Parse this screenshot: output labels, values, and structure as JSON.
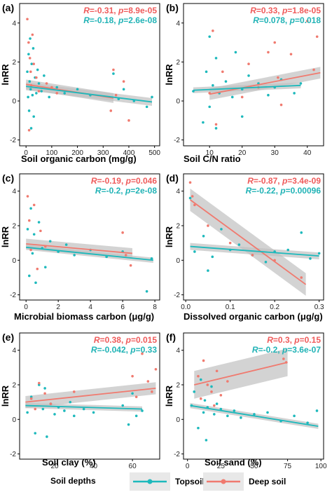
{
  "colors": {
    "topsoil": "#1db9bc",
    "deep_soil": "#f07a6f",
    "band": "#c0c0c0",
    "stat_deep": "#ef5b5b",
    "stat_top": "#21b3b6"
  },
  "legend": {
    "title": "Soil depths",
    "items": [
      "Topsoil",
      "Deep soil"
    ]
  },
  "chart_data": [
    {
      "type": "scatter",
      "panel": "(a)",
      "xlabel": "Soil organic carbon (mg/g)",
      "ylabel": "lnRR",
      "xlim": [
        -25,
        520
      ],
      "ylim": [
        -2.3,
        5.0
      ],
      "xticks": [
        0,
        100,
        200,
        300,
        400,
        500
      ],
      "yticks": [
        -2,
        0,
        2,
        4
      ],
      "stats": [
        {
          "series": "Deep soil",
          "R": "-0.31",
          "p": "8.9e-05"
        },
        {
          "series": "Topsoil",
          "R": "-0.18",
          "p": "2.6e-08"
        }
      ],
      "fits": [
        {
          "series": "Deep soil",
          "x": [
            0,
            340
          ],
          "y": [
            0.85,
            0.15
          ],
          "se": 0.25
        },
        {
          "series": "Topsoil",
          "x": [
            0,
            490
          ],
          "y": [
            0.75,
            -0.05
          ],
          "se": 0.2
        }
      ],
      "series": [
        {
          "name": "Topsoil",
          "x": [
            5,
            8,
            10,
            12,
            14,
            16,
            18,
            20,
            22,
            25,
            28,
            30,
            35,
            40,
            45,
            50,
            60,
            70,
            90,
            120,
            150,
            200,
            250,
            340,
            360,
            380,
            420,
            470,
            490
          ],
          "y": [
            1.5,
            0.2,
            2.4,
            -0.5,
            1.0,
            3.2,
            0.6,
            -1.4,
            1.9,
            0.3,
            2.7,
            -0.8,
            1.2,
            0.4,
            1.6,
            0.9,
            0.5,
            1.3,
            0.2,
            0.7,
            0.4,
            0.6,
            0.3,
            1.4,
            0.1,
            0.6,
            0.0,
            -0.3,
            0.2
          ]
        },
        {
          "name": "Deep soil",
          "x": [
            5,
            10,
            12,
            15,
            18,
            20,
            25,
            30,
            40,
            50,
            80,
            100,
            120,
            330,
            340,
            350,
            380,
            400
          ],
          "y": [
            4.2,
            3.0,
            -1.5,
            2.2,
            1.5,
            0.8,
            3.4,
            1.9,
            1.2,
            0.5,
            0.9,
            0.7,
            0.4,
            -0.5,
            1.6,
            0.3,
            1.0,
            -1.0
          ]
        }
      ]
    },
    {
      "type": "scatter",
      "panel": "(b)",
      "xlabel": "Soil C/N ratio",
      "ylabel": "lnRR",
      "xlim": [
        2,
        45
      ],
      "ylim": [
        -2.3,
        5.0
      ],
      "xticks": [
        10,
        20,
        30,
        40
      ],
      "yticks": [
        -2,
        0,
        2,
        4
      ],
      "stats": [
        {
          "series": "Deep soil",
          "R": "0.33",
          "p": "1.8e-05"
        },
        {
          "series": "Topsoil",
          "R": "0.078",
          "p": "0.018"
        }
      ],
      "fits": [
        {
          "series": "Deep soil",
          "x": [
            10,
            44
          ],
          "y": [
            0.35,
            1.45
          ],
          "se": 0.3
        },
        {
          "series": "Topsoil",
          "x": [
            5,
            38
          ],
          "y": [
            0.55,
            0.8
          ],
          "se": 0.15
        }
      ],
      "series": [
        {
          "name": "Topsoil",
          "x": [
            5,
            8,
            9,
            10,
            10,
            11,
            12,
            12,
            13,
            15,
            17,
            18,
            20,
            20,
            22,
            25,
            28,
            30,
            32,
            36,
            38
          ],
          "y": [
            0.5,
            -1.1,
            1.5,
            3.3,
            -0.3,
            0.8,
            2.2,
            -1.4,
            0.4,
            1.0,
            0.2,
            2.5,
            0.6,
            -0.8,
            1.3,
            0.9,
            0.3,
            0.7,
            1.1,
            0.4,
            0.9
          ]
        },
        {
          "name": "Deep soil",
          "x": [
            10,
            11,
            12,
            14,
            20,
            22,
            25,
            28,
            30,
            31,
            32,
            35,
            40,
            42,
            43
          ],
          "y": [
            0.4,
            3.6,
            -1.2,
            1.5,
            0.2,
            1.9,
            0.7,
            2.5,
            3.0,
            1.2,
            -0.2,
            2.4,
            4.1,
            1.6,
            3.3
          ]
        }
      ]
    },
    {
      "type": "scatter",
      "panel": "(c)",
      "xlabel": "Microbial biomass carbon (μg/g)",
      "ylabel": "lnRR",
      "xlim": [
        -0.4,
        8.3
      ],
      "ylim": [
        -2.3,
        5.0
      ],
      "xticks": [
        0,
        2,
        4,
        6,
        8
      ],
      "yticks": [
        -2,
        0,
        2,
        4
      ],
      "stats": [
        {
          "series": "Deep soil",
          "R": "-0.19",
          "p": "0.046"
        },
        {
          "series": "Topsoil",
          "R": "-0.2",
          "p": "2e-08"
        }
      ],
      "fits": [
        {
          "series": "Deep soil",
          "x": [
            0,
            6.6
          ],
          "y": [
            0.95,
            0.4
          ],
          "se": 0.3
        },
        {
          "series": "Topsoil",
          "x": [
            0,
            7.9
          ],
          "y": [
            0.75,
            0.0
          ],
          "se": 0.15
        }
      ],
      "series": [
        {
          "name": "Topsoil",
          "x": [
            0.1,
            0.2,
            0.3,
            0.4,
            0.5,
            0.6,
            0.8,
            1.0,
            1.2,
            1.5,
            2.0,
            2.5,
            3.0,
            4.0,
            5.0,
            6.0,
            7.5,
            7.8
          ],
          "y": [
            1.8,
            -0.9,
            3.0,
            0.4,
            1.5,
            -1.3,
            2.2,
            0.7,
            -0.4,
            1.1,
            0.5,
            0.9,
            0.3,
            0.6,
            0.2,
            0.5,
            -1.8,
            0.1
          ]
        },
        {
          "name": "Deep soil",
          "x": [
            0.1,
            0.2,
            0.3,
            0.5,
            0.7,
            0.9,
            1.2,
            6.0,
            6.2,
            6.5
          ],
          "y": [
            3.7,
            2.3,
            0.6,
            3.2,
            -0.5,
            1.7,
            0.8,
            1.6,
            0.3,
            -0.3
          ]
        }
      ]
    },
    {
      "type": "scatter",
      "panel": "(d)",
      "xlabel": "Dissolved organic carbon (μg/g)",
      "ylabel": "lnRR",
      "xlim": [
        -0.005,
        0.31
      ],
      "ylim": [
        -2.3,
        5.0
      ],
      "xticks": [
        0.0,
        0.1,
        0.2,
        0.3
      ],
      "yticks": [
        -2,
        0,
        2,
        4
      ],
      "stats": [
        {
          "series": "Deep soil",
          "R": "-0.87",
          "p": "3.4e-09"
        },
        {
          "series": "Topsoil",
          "R": "-0.22",
          "p": "0.00096"
        }
      ],
      "fits": [
        {
          "series": "Deep soil",
          "x": [
            0.01,
            0.27
          ],
          "y": [
            3.5,
            -1.4
          ],
          "se": 0.65
        },
        {
          "series": "Topsoil",
          "x": [
            0.01,
            0.3
          ],
          "y": [
            0.8,
            0.25
          ],
          "se": 0.2
        }
      ],
      "series": [
        {
          "name": "Topsoil",
          "x": [
            0.01,
            0.02,
            0.04,
            0.05,
            0.06,
            0.08,
            0.1,
            0.12,
            0.15,
            0.18,
            0.2,
            0.23,
            0.26,
            0.28,
            0.3
          ],
          "y": [
            3.6,
            0.5,
            1.4,
            -0.6,
            0.2,
            1.8,
            0.6,
            0.9,
            0.3,
            -0.1,
            0.5,
            0.6,
            1.6,
            0.1,
            0.4
          ]
        },
        {
          "name": "Deep soil",
          "x": [
            0.01,
            0.015,
            0.02,
            0.05,
            0.1,
            0.15,
            0.2,
            0.26
          ],
          "y": [
            4.5,
            3.7,
            3.2,
            2.0,
            1.0,
            0.3,
            0.0,
            -1.0
          ]
        }
      ]
    },
    {
      "type": "scatter",
      "panel": "(e)",
      "xlabel": "Soil clay (%)",
      "ylabel": "lnRR",
      "xlim": [
        2,
        74
      ],
      "ylim": [
        -2.3,
        5.0
      ],
      "xticks": [
        20,
        40,
        60
      ],
      "yticks": [
        -2,
        0,
        2,
        4
      ],
      "stats": [
        {
          "series": "Deep soil",
          "R": "0.38",
          "p": "0.015"
        },
        {
          "series": "Topsoil",
          "R": "-0.042",
          "p": "0.33"
        }
      ],
      "fits": [
        {
          "series": "Deep soil",
          "x": [
            5,
            72
          ],
          "y": [
            1.0,
            1.8
          ],
          "se": 0.35
        },
        {
          "series": "Topsoil",
          "x": [
            5,
            65
          ],
          "y": [
            0.8,
            0.6
          ],
          "se": 0.15
        }
      ],
      "series": [
        {
          "name": "Topsoil",
          "x": [
            6,
            8,
            10,
            12,
            14,
            15,
            16,
            18,
            20,
            22,
            25,
            28,
            30,
            35,
            40,
            55,
            58,
            60,
            62,
            65
          ],
          "y": [
            0.4,
            1.3,
            -0.8,
            2.0,
            0.6,
            1.8,
            -1.0,
            0.9,
            0.3,
            0.7,
            0.5,
            1.0,
            0.2,
            0.6,
            0.4,
            0.8,
            -0.3,
            1.5,
            0.2,
            0.5
          ]
        },
        {
          "name": "Deep soil",
          "x": [
            8,
            10,
            12,
            15,
            18,
            30,
            60,
            62,
            65,
            68,
            70,
            72
          ],
          "y": [
            1.2,
            0.6,
            2.1,
            1.5,
            0.9,
            1.6,
            2.5,
            1.3,
            3.8,
            2.2,
            1.6,
            2.9
          ]
        }
      ]
    },
    {
      "type": "scatter",
      "panel": "(f)",
      "xlabel": "Soil sand (%)",
      "ylabel": "lnRR",
      "xlim": [
        -3,
        102
      ],
      "ylim": [
        -2.3,
        5.0
      ],
      "xticks": [
        0,
        25,
        50,
        75,
        100
      ],
      "yticks": [
        -2,
        0,
        2,
        4
      ],
      "stats": [
        {
          "series": "Deep soil",
          "R": "0.3",
          "p": "0.15"
        },
        {
          "series": "Topsoil",
          "R": "-0.2",
          "p": "3.6e-07"
        }
      ],
      "fits": [
        {
          "series": "Deep soil",
          "x": [
            5,
            75
          ],
          "y": [
            2.0,
            3.3
          ],
          "se": 0.8
        },
        {
          "series": "Topsoil",
          "x": [
            2,
            98
          ],
          "y": [
            0.8,
            -0.4
          ],
          "se": 0.15
        }
      ],
      "series": [
        {
          "name": "Topsoil",
          "x": [
            3,
            5,
            8,
            10,
            12,
            13,
            14,
            15,
            18,
            20,
            22,
            25,
            30,
            35,
            40,
            50,
            60,
            70,
            80,
            90,
            97
          ],
          "y": [
            0.8,
            1.6,
            -0.5,
            2.3,
            0.4,
            1.1,
            -1.2,
            0.7,
            1.9,
            0.3,
            0.9,
            0.6,
            0.2,
            0.5,
            0.1,
            0.3,
            0.4,
            -0.1,
            0.2,
            -0.2,
            0.5
          ]
        },
        {
          "name": "Deep soil",
          "x": [
            8,
            10,
            12,
            15,
            18,
            20,
            22,
            25,
            30,
            72,
            74
          ],
          "y": [
            2.5,
            1.2,
            3.4,
            2.0,
            1.6,
            0.8,
            2.8,
            1.4,
            2.2,
            3.5,
            3.3
          ]
        }
      ]
    }
  ]
}
